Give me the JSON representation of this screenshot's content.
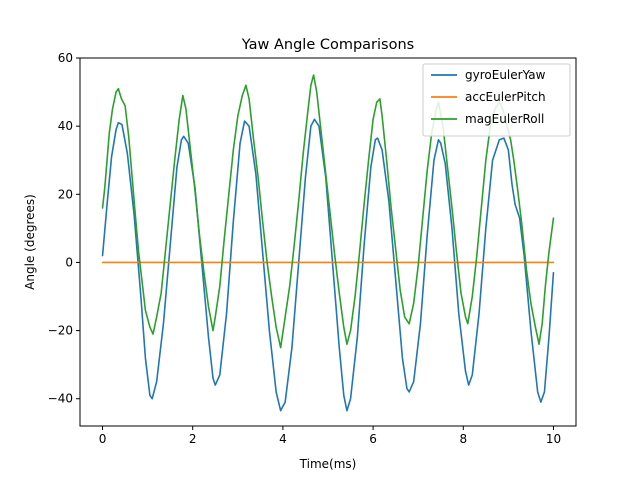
{
  "chart_data": {
    "type": "line",
    "title": "Yaw Angle Comparisons",
    "xlabel": "Time(ms)",
    "ylabel": "Angle (degrees)",
    "xlim": [
      -0.5,
      10.5
    ],
    "ylim": [
      -48,
      60
    ],
    "xticks": [
      0,
      2,
      4,
      6,
      8,
      10
    ],
    "yticks": [
      -40,
      -20,
      0,
      20,
      40,
      60
    ],
    "grid": false,
    "legend_position": "top-right",
    "series": [
      {
        "name": "gyroEulerYaw",
        "color": "#1f77b4",
        "points": [
          [
            0.0,
            2
          ],
          [
            0.1,
            17
          ],
          [
            0.2,
            31
          ],
          [
            0.3,
            39
          ],
          [
            0.35,
            41
          ],
          [
            0.43,
            40.5
          ],
          [
            0.55,
            32
          ],
          [
            0.7,
            14
          ],
          [
            0.85,
            -10
          ],
          [
            0.95,
            -28
          ],
          [
            1.05,
            -39
          ],
          [
            1.1,
            -40
          ],
          [
            1.2,
            -35
          ],
          [
            1.35,
            -18
          ],
          [
            1.5,
            5
          ],
          [
            1.65,
            28
          ],
          [
            1.75,
            36
          ],
          [
            1.8,
            37
          ],
          [
            1.9,
            35
          ],
          [
            2.05,
            22
          ],
          [
            2.2,
            0
          ],
          [
            2.35,
            -22
          ],
          [
            2.45,
            -34
          ],
          [
            2.5,
            -36
          ],
          [
            2.6,
            -33
          ],
          [
            2.75,
            -15
          ],
          [
            2.9,
            12
          ],
          [
            3.05,
            35
          ],
          [
            3.15,
            41.5
          ],
          [
            3.25,
            40
          ],
          [
            3.4,
            26
          ],
          [
            3.55,
            3
          ],
          [
            3.7,
            -20
          ],
          [
            3.85,
            -38
          ],
          [
            3.95,
            -43.5
          ],
          [
            4.05,
            -41
          ],
          [
            4.2,
            -25
          ],
          [
            4.35,
            0
          ],
          [
            4.5,
            25
          ],
          [
            4.62,
            40
          ],
          [
            4.7,
            42
          ],
          [
            4.8,
            40
          ],
          [
            4.95,
            25
          ],
          [
            5.1,
            0
          ],
          [
            5.25,
            -25
          ],
          [
            5.35,
            -39
          ],
          [
            5.42,
            -43.5
          ],
          [
            5.5,
            -40
          ],
          [
            5.65,
            -22
          ],
          [
            5.8,
            5
          ],
          [
            5.95,
            28
          ],
          [
            6.05,
            36
          ],
          [
            6.1,
            36.5
          ],
          [
            6.2,
            33
          ],
          [
            6.35,
            18
          ],
          [
            6.5,
            -5
          ],
          [
            6.65,
            -28
          ],
          [
            6.75,
            -37
          ],
          [
            6.8,
            -38
          ],
          [
            6.9,
            -35
          ],
          [
            7.05,
            -18
          ],
          [
            7.2,
            8
          ],
          [
            7.35,
            30
          ],
          [
            7.45,
            36
          ],
          [
            7.5,
            35
          ],
          [
            7.6,
            29
          ],
          [
            7.75,
            10
          ],
          [
            7.9,
            -15
          ],
          [
            8.05,
            -32
          ],
          [
            8.12,
            -36
          ],
          [
            8.2,
            -33
          ],
          [
            8.35,
            -15
          ],
          [
            8.5,
            10
          ],
          [
            8.65,
            30
          ],
          [
            8.8,
            36
          ],
          [
            8.9,
            36.5
          ],
          [
            9.0,
            33
          ],
          [
            9.08,
            23
          ],
          [
            9.15,
            17
          ],
          [
            9.25,
            13
          ],
          [
            9.35,
            2
          ],
          [
            9.5,
            -20
          ],
          [
            9.65,
            -38
          ],
          [
            9.72,
            -41
          ],
          [
            9.8,
            -38
          ],
          [
            9.9,
            -22
          ],
          [
            10.0,
            -3
          ]
        ]
      },
      {
        "name": "accEulerPitch",
        "color": "#ff7f0e",
        "points": [
          [
            0.0,
            0
          ],
          [
            10.0,
            0
          ]
        ]
      },
      {
        "name": "magEulerRoll",
        "color": "#2ca02c",
        "points": [
          [
            0.0,
            16
          ],
          [
            0.05,
            22
          ],
          [
            0.1,
            30
          ],
          [
            0.15,
            38
          ],
          [
            0.22,
            45
          ],
          [
            0.3,
            50
          ],
          [
            0.35,
            51
          ],
          [
            0.42,
            48
          ],
          [
            0.5,
            46
          ],
          [
            0.58,
            37
          ],
          [
            0.65,
            26
          ],
          [
            0.72,
            15
          ],
          [
            0.8,
            3
          ],
          [
            0.88,
            -6
          ],
          [
            0.95,
            -14
          ],
          [
            1.05,
            -19
          ],
          [
            1.12,
            -21
          ],
          [
            1.2,
            -16
          ],
          [
            1.3,
            -9
          ],
          [
            1.4,
            4
          ],
          [
            1.5,
            17
          ],
          [
            1.6,
            30
          ],
          [
            1.7,
            42
          ],
          [
            1.78,
            49
          ],
          [
            1.85,
            45
          ],
          [
            1.95,
            33
          ],
          [
            2.05,
            21
          ],
          [
            2.15,
            8
          ],
          [
            2.25,
            -3
          ],
          [
            2.35,
            -13
          ],
          [
            2.45,
            -20
          ],
          [
            2.5,
            -16
          ],
          [
            2.6,
            -7
          ],
          [
            2.7,
            7
          ],
          [
            2.8,
            20
          ],
          [
            2.9,
            33
          ],
          [
            3.0,
            43
          ],
          [
            3.1,
            49
          ],
          [
            3.18,
            52
          ],
          [
            3.25,
            48
          ],
          [
            3.35,
            36
          ],
          [
            3.45,
            25
          ],
          [
            3.55,
            12
          ],
          [
            3.65,
            0
          ],
          [
            3.75,
            -10
          ],
          [
            3.85,
            -19
          ],
          [
            3.95,
            -25
          ],
          [
            4.05,
            -16
          ],
          [
            4.15,
            -7
          ],
          [
            4.25,
            5
          ],
          [
            4.35,
            18
          ],
          [
            4.45,
            32
          ],
          [
            4.55,
            44
          ],
          [
            4.62,
            52
          ],
          [
            4.68,
            55
          ],
          [
            4.75,
            50
          ],
          [
            4.85,
            38
          ],
          [
            4.95,
            26
          ],
          [
            5.05,
            14
          ],
          [
            5.15,
            2
          ],
          [
            5.25,
            -9
          ],
          [
            5.35,
            -19
          ],
          [
            5.42,
            -24
          ],
          [
            5.5,
            -20
          ],
          [
            5.6,
            -10
          ],
          [
            5.7,
            3
          ],
          [
            5.8,
            17
          ],
          [
            5.9,
            30
          ],
          [
            6.0,
            42
          ],
          [
            6.08,
            47
          ],
          [
            6.15,
            48
          ],
          [
            6.2,
            43
          ],
          [
            6.3,
            30
          ],
          [
            6.4,
            16
          ],
          [
            6.5,
            4
          ],
          [
            6.6,
            -8
          ],
          [
            6.7,
            -16
          ],
          [
            6.8,
            -18
          ],
          [
            6.9,
            -12
          ],
          [
            7.0,
            -1
          ],
          [
            7.1,
            13
          ],
          [
            7.2,
            27
          ],
          [
            7.3,
            38
          ],
          [
            7.4,
            45
          ],
          [
            7.45,
            47
          ],
          [
            7.55,
            40
          ],
          [
            7.65,
            28
          ],
          [
            7.75,
            16
          ],
          [
            7.85,
            3
          ],
          [
            7.95,
            -9
          ],
          [
            8.05,
            -16
          ],
          [
            8.1,
            -18
          ],
          [
            8.2,
            -10
          ],
          [
            8.3,
            2
          ],
          [
            8.4,
            16
          ],
          [
            8.5,
            30
          ],
          [
            8.6,
            40
          ],
          [
            8.7,
            45
          ],
          [
            8.8,
            47
          ],
          [
            8.88,
            45
          ],
          [
            8.95,
            41
          ],
          [
            9.05,
            36
          ],
          [
            9.12,
            30
          ],
          [
            9.2,
            22
          ],
          [
            9.3,
            11
          ],
          [
            9.4,
            -2
          ],
          [
            9.5,
            -12
          ],
          [
            9.6,
            -19
          ],
          [
            9.68,
            -24
          ],
          [
            9.75,
            -18
          ],
          [
            9.82,
            -7
          ],
          [
            9.9,
            3
          ],
          [
            10.0,
            13
          ]
        ]
      }
    ]
  }
}
